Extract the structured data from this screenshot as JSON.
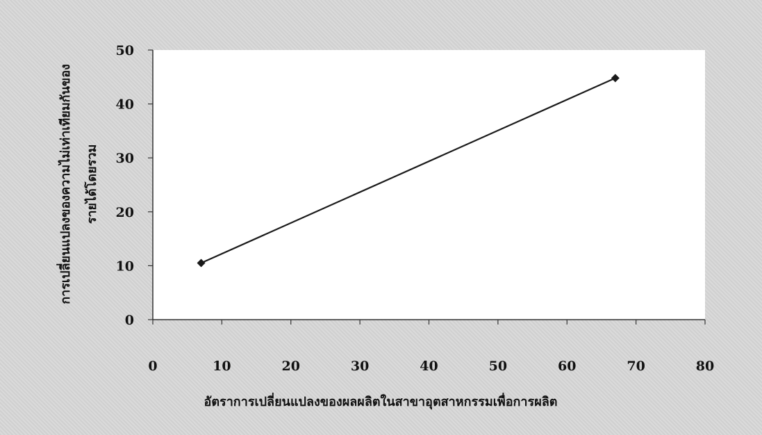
{
  "chart_data": {
    "type": "line",
    "title": "",
    "xlabel": "อัตราการเปลี่ยนแปลงของผลผลิตในสาขาอุตสาหกรรมเพื่อการผลิต",
    "ylabel_line1": "การเปลี่ยนแปลงของความไม่เท่าเทียมกันของ",
    "ylabel_line2": "รายได้โดยรวม",
    "xlim": [
      0,
      80
    ],
    "ylim": [
      0,
      50
    ],
    "x_ticks": [
      0,
      10,
      20,
      30,
      40,
      50,
      60,
      70,
      80
    ],
    "y_ticks": [
      0,
      10,
      20,
      30,
      40,
      50
    ],
    "grid": false,
    "series": [
      {
        "x": [
          7,
          67
        ],
        "y": [
          10.5,
          44.8
        ],
        "color": "#1a1a1a",
        "marker": "diamond"
      }
    ]
  }
}
